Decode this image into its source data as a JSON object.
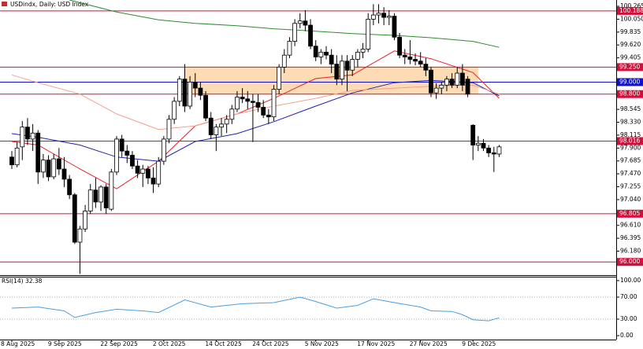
{
  "chart_data": [
    {
      "type": "candlestick",
      "title": "USDindx, Daily:  USD Index",
      "categories": [
        "8 Aug 2025",
        null,
        null,
        null,
        null,
        null,
        null,
        null,
        null,
        "9 Sep 2025",
        null,
        null,
        null,
        null,
        null,
        null,
        null,
        null,
        null,
        "22 Sep 2025",
        null,
        null,
        null,
        null,
        null,
        null,
        null,
        null,
        null,
        "2 Oct 2025",
        null,
        null,
        null,
        null,
        null,
        null,
        null,
        null,
        null,
        "14 Oct 2025",
        null,
        null,
        null,
        null,
        null,
        null,
        null,
        null,
        "24 Oct 2025",
        null,
        null,
        null,
        null,
        null,
        null,
        null,
        null,
        null,
        "5 Nov 2025",
        null,
        null,
        null,
        null,
        null,
        null,
        null,
        null,
        null,
        "17 Nov 2025",
        null,
        null,
        null,
        null,
        null,
        null,
        null,
        null,
        null,
        "27 Nov 2025",
        null,
        null,
        null,
        null,
        null,
        null,
        null,
        null,
        null,
        "9 Dec 2025",
        null,
        null,
        null,
        null,
        null
      ],
      "open": [
        97.75,
        97.62,
        97.92,
        98.25,
        98.05,
        98.15,
        97.5,
        97.7,
        97.42,
        97.72,
        97.55,
        97.38,
        97.12,
        96.33,
        96.55,
        96.85,
        97.2,
        97.0,
        97.25,
        96.88,
        97.5,
        98.05,
        97.85,
        97.78,
        97.6,
        97.48,
        97.55,
        97.4,
        97.3,
        97.68,
        98.05,
        98.38,
        98.68,
        99.05,
        98.6,
        99.0,
        98.9,
        98.78,
        98.4,
        98.12,
        98.25,
        98.3,
        98.38,
        98.55,
        98.75,
        98.72,
        98.68,
        98.66,
        98.58,
        98.45,
        98.42,
        98.88,
        99.25,
        99.45,
        99.68,
        99.98,
        100.02,
        99.95,
        99.6,
        99.42,
        99.5,
        99.45,
        99.3,
        99.05,
        99.35,
        99.2,
        99.38,
        99.5,
        99.55,
        100.05,
        100.12,
        100.15,
        100.08,
        100.1,
        99.75,
        99.45,
        99.42,
        99.38,
        99.35,
        99.3,
        99.2,
        98.82,
        98.9,
        98.95,
        99.05,
        98.95,
        99.15,
        99.05,
        98.28,
        97.95,
        97.98,
        97.9,
        97.82,
        97.8
      ],
      "high": [
        97.85,
        98.0,
        98.35,
        98.4,
        98.3,
        98.2,
        97.8,
        97.78,
        97.8,
        97.9,
        97.75,
        97.45,
        97.15,
        96.6,
        96.95,
        97.3,
        97.4,
        97.28,
        97.3,
        97.55,
        98.1,
        98.12,
        97.95,
        97.85,
        97.7,
        97.62,
        97.6,
        97.58,
        97.75,
        98.1,
        98.45,
        98.75,
        99.1,
        99.3,
        99.1,
        99.15,
        99.0,
        98.85,
        98.5,
        98.3,
        98.4,
        98.45,
        98.62,
        98.85,
        98.9,
        98.85,
        98.8,
        98.8,
        98.7,
        98.55,
        98.95,
        99.3,
        99.55,
        99.75,
        100.05,
        100.15,
        100.2,
        100.05,
        99.7,
        99.55,
        99.6,
        99.55,
        99.45,
        99.45,
        99.45,
        99.45,
        99.55,
        99.65,
        100.15,
        100.3,
        100.3,
        100.25,
        100.2,
        100.15,
        99.82,
        99.55,
        99.7,
        99.48,
        99.5,
        99.4,
        99.25,
        98.98,
        99.0,
        99.1,
        99.15,
        99.25,
        99.3,
        99.1,
        98.3,
        98.1,
        98.05,
        97.95,
        97.92,
        97.95
      ],
      "low": [
        97.55,
        97.58,
        97.7,
        97.95,
        97.85,
        97.3,
        97.4,
        97.35,
        97.38,
        97.45,
        97.25,
        97.05,
        96.3,
        95.8,
        96.5,
        96.8,
        96.9,
        96.85,
        96.8,
        96.85,
        97.45,
        97.75,
        97.65,
        97.55,
        97.4,
        97.25,
        97.3,
        97.15,
        97.25,
        97.62,
        97.98,
        98.3,
        98.6,
        98.5,
        98.55,
        98.75,
        98.7,
        98.35,
        98.05,
        97.85,
        98.1,
        98.15,
        98.3,
        98.5,
        98.65,
        98.55,
        98.0,
        98.5,
        98.4,
        98.3,
        98.35,
        98.8,
        99.15,
        99.4,
        99.6,
        99.9,
        99.85,
        99.55,
        99.35,
        99.3,
        99.38,
        99.15,
        98.95,
        98.95,
        98.85,
        99.1,
        99.25,
        99.4,
        99.5,
        99.95,
        99.98,
        99.95,
        99.95,
        99.7,
        99.4,
        99.3,
        99.3,
        99.28,
        99.25,
        99.1,
        98.75,
        98.72,
        98.8,
        98.85,
        98.9,
        98.9,
        98.85,
        98.75,
        97.7,
        97.85,
        97.85,
        97.75,
        97.5,
        97.75
      ],
      "close": [
        97.62,
        97.9,
        98.25,
        98.05,
        98.15,
        97.5,
        97.7,
        97.42,
        97.72,
        97.55,
        97.38,
        97.12,
        96.33,
        96.55,
        96.85,
        97.2,
        97.0,
        97.25,
        96.9,
        97.5,
        98.05,
        97.85,
        97.78,
        97.6,
        97.48,
        97.55,
        97.4,
        97.3,
        97.68,
        98.05,
        98.38,
        98.68,
        99.05,
        98.6,
        99.0,
        98.9,
        98.78,
        98.4,
        98.12,
        98.25,
        98.3,
        98.38,
        98.55,
        98.75,
        98.72,
        98.68,
        98.66,
        98.58,
        98.45,
        98.42,
        98.88,
        99.25,
        99.45,
        99.68,
        99.98,
        100.02,
        99.95,
        99.6,
        99.42,
        99.5,
        99.45,
        99.3,
        99.05,
        99.35,
        99.2,
        99.38,
        99.5,
        99.55,
        100.05,
        100.12,
        100.15,
        100.08,
        100.1,
        99.75,
        99.45,
        99.42,
        99.38,
        99.35,
        99.3,
        99.2,
        98.82,
        98.9,
        98.95,
        99.05,
        98.95,
        99.15,
        98.95,
        98.8,
        97.95,
        97.98,
        97.9,
        97.82,
        97.8,
        97.92
      ],
      "up_color": "#ffffff",
      "down_color": "#000000",
      "ylim": [
        95.78,
        100.37
      ],
      "yticks": [
        100.265,
        {
          "value": 100.05,
          "label": "100.050"
        },
        99.835,
        {
          "value": 99.62,
          "label": "99.620"
        },
        99.405,
        98.545,
        {
          "value": 98.33,
          "label": "98.330"
        },
        98.115,
        {
          "value": 97.9,
          "label": "97.900"
        },
        97.685,
        {
          "value": 97.47,
          "label": "97.470"
        },
        97.255,
        {
          "value": 97.04,
          "label": "97.040"
        },
        {
          "value": 96.61,
          "label": "96.610"
        },
        96.395,
        {
          "value": 96.18,
          "label": "96.180"
        }
      ],
      "levels": [
        {
          "value": 100.188,
          "color": "#d0103a"
        },
        {
          "value": 99.25,
          "label": "99.250",
          "color": "#d0103a"
        },
        {
          "value": 99,
          "label": "99.000",
          "color": "#1010c8"
        },
        {
          "value": 98.8,
          "label": "98.800",
          "color": "#d0103a"
        },
        {
          "value": 98.016,
          "color": "#d0103a"
        },
        {
          "value": 96.805,
          "color": "#d0103a"
        },
        {
          "value": 96,
          "label": "96.000",
          "color": "#d0103a"
        }
      ],
      "zone": {
        "from": 33,
        "to": 89,
        "low": 98.8,
        "high": 99.25,
        "color": "#fcd5a8"
      },
      "lines": [
        {
          "color": "#e8202a",
          "x": [
            0,
            5,
            13,
            20,
            28,
            35,
            43,
            50,
            58,
            65,
            73,
            80,
            88,
            93
          ],
          "values": [
            98.01,
            97.95,
            97.55,
            97.22,
            97.68,
            98.27,
            98.47,
            98.73,
            99.06,
            99.12,
            99.52,
            99.39,
            99.16,
            98.73
          ]
        },
        {
          "color": "#2020b0",
          "x": [
            0,
            5,
            13,
            20,
            28,
            35,
            43,
            50,
            58,
            65,
            73,
            80,
            88,
            93
          ],
          "values": [
            98.14,
            98.08,
            97.95,
            97.75,
            97.68,
            98.01,
            98.14,
            98.34,
            98.6,
            98.82,
            98.99,
            99.03,
            98.99,
            98.77
          ]
        },
        {
          "color": "#f4a08a",
          "x": [
            0,
            5,
            13,
            20,
            28,
            35,
            43,
            50,
            58,
            65,
            73,
            80,
            88,
            93
          ],
          "values": [
            99.12,
            98.99,
            98.8,
            98.47,
            98.21,
            98.27,
            98.47,
            98.6,
            98.73,
            98.86,
            98.9,
            98.93,
            98.95,
            98.8
          ]
        },
        {
          "color": "#2e8b2e",
          "x": [
            11,
            20,
            28,
            35,
            43,
            50,
            58,
            65,
            73,
            80,
            88,
            93
          ],
          "values": [
            100.37,
            100.17,
            100.04,
            99.98,
            99.94,
            99.89,
            99.85,
            99.81,
            99.78,
            99.74,
            99.68,
            99.58
          ]
        }
      ]
    },
    {
      "type": "line",
      "title": "RSI(14) 32.38",
      "color": "#4a9fe0",
      "x": [
        0,
        5,
        10,
        12,
        16,
        20,
        25,
        28,
        33,
        38,
        44,
        50,
        55,
        58,
        62,
        66,
        69,
        73,
        78,
        80,
        84,
        86,
        88,
        91,
        93
      ],
      "values": [
        50,
        52,
        45,
        33,
        42,
        48,
        45,
        42,
        65,
        52,
        58,
        60,
        70,
        62,
        50,
        55,
        67,
        60,
        52,
        45,
        44,
        38,
        29,
        27,
        32.38
      ],
      "ylim": [
        -7.1,
        107.1
      ],
      "yticks": [
        {
          "value": 100,
          "label": "100.00"
        },
        {
          "value": 70,
          "label": "70.00"
        },
        {
          "value": 30,
          "label": "30.00"
        },
        {
          "value": 0,
          "label": "0.00"
        }
      ],
      "levels": [
        70,
        30
      ]
    }
  ]
}
